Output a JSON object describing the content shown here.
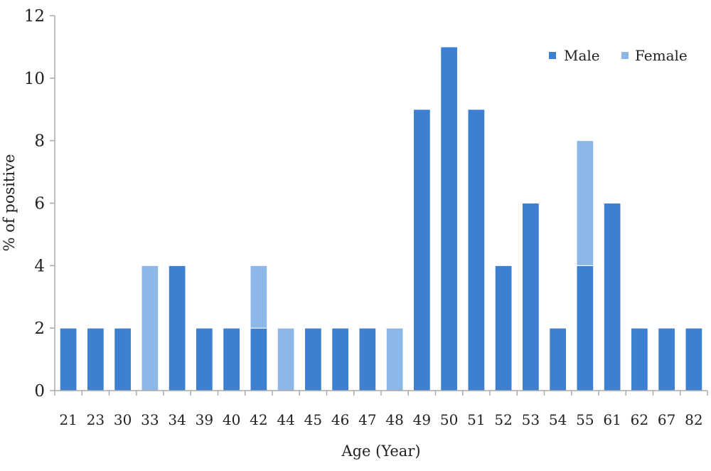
{
  "chart_data": {
    "type": "bar",
    "stacked": true,
    "title": "",
    "xlabel": "Age (Year)",
    "ylabel": "% of positive",
    "ylim": [
      0,
      12
    ],
    "yticks": [
      "0",
      "2",
      "4",
      "6",
      "8",
      "10",
      "12"
    ],
    "grid": false,
    "legend_position": "top-right",
    "categories": [
      "21",
      "23",
      "30",
      "33",
      "34",
      "39",
      "40",
      "42",
      "44",
      "45",
      "46",
      "47",
      "48",
      "49",
      "50",
      "51",
      "52",
      "53",
      "54",
      "55",
      "61",
      "62",
      "67",
      "82"
    ],
    "series": [
      {
        "name": "Male",
        "color": "#3d7fd0",
        "values": [
          2,
          2,
          2,
          0,
          4,
          2,
          2,
          2,
          0,
          2,
          2,
          2,
          0,
          9,
          11,
          9,
          4,
          6,
          2,
          4,
          6,
          2,
          2,
          2
        ]
      },
      {
        "name": "Female",
        "color": "#8db7e6",
        "values": [
          0,
          0,
          0,
          4,
          0,
          0,
          0,
          2,
          2,
          0,
          0,
          0,
          2,
          0,
          0,
          0,
          0,
          0,
          0,
          4,
          0,
          0,
          0,
          0
        ]
      }
    ]
  }
}
